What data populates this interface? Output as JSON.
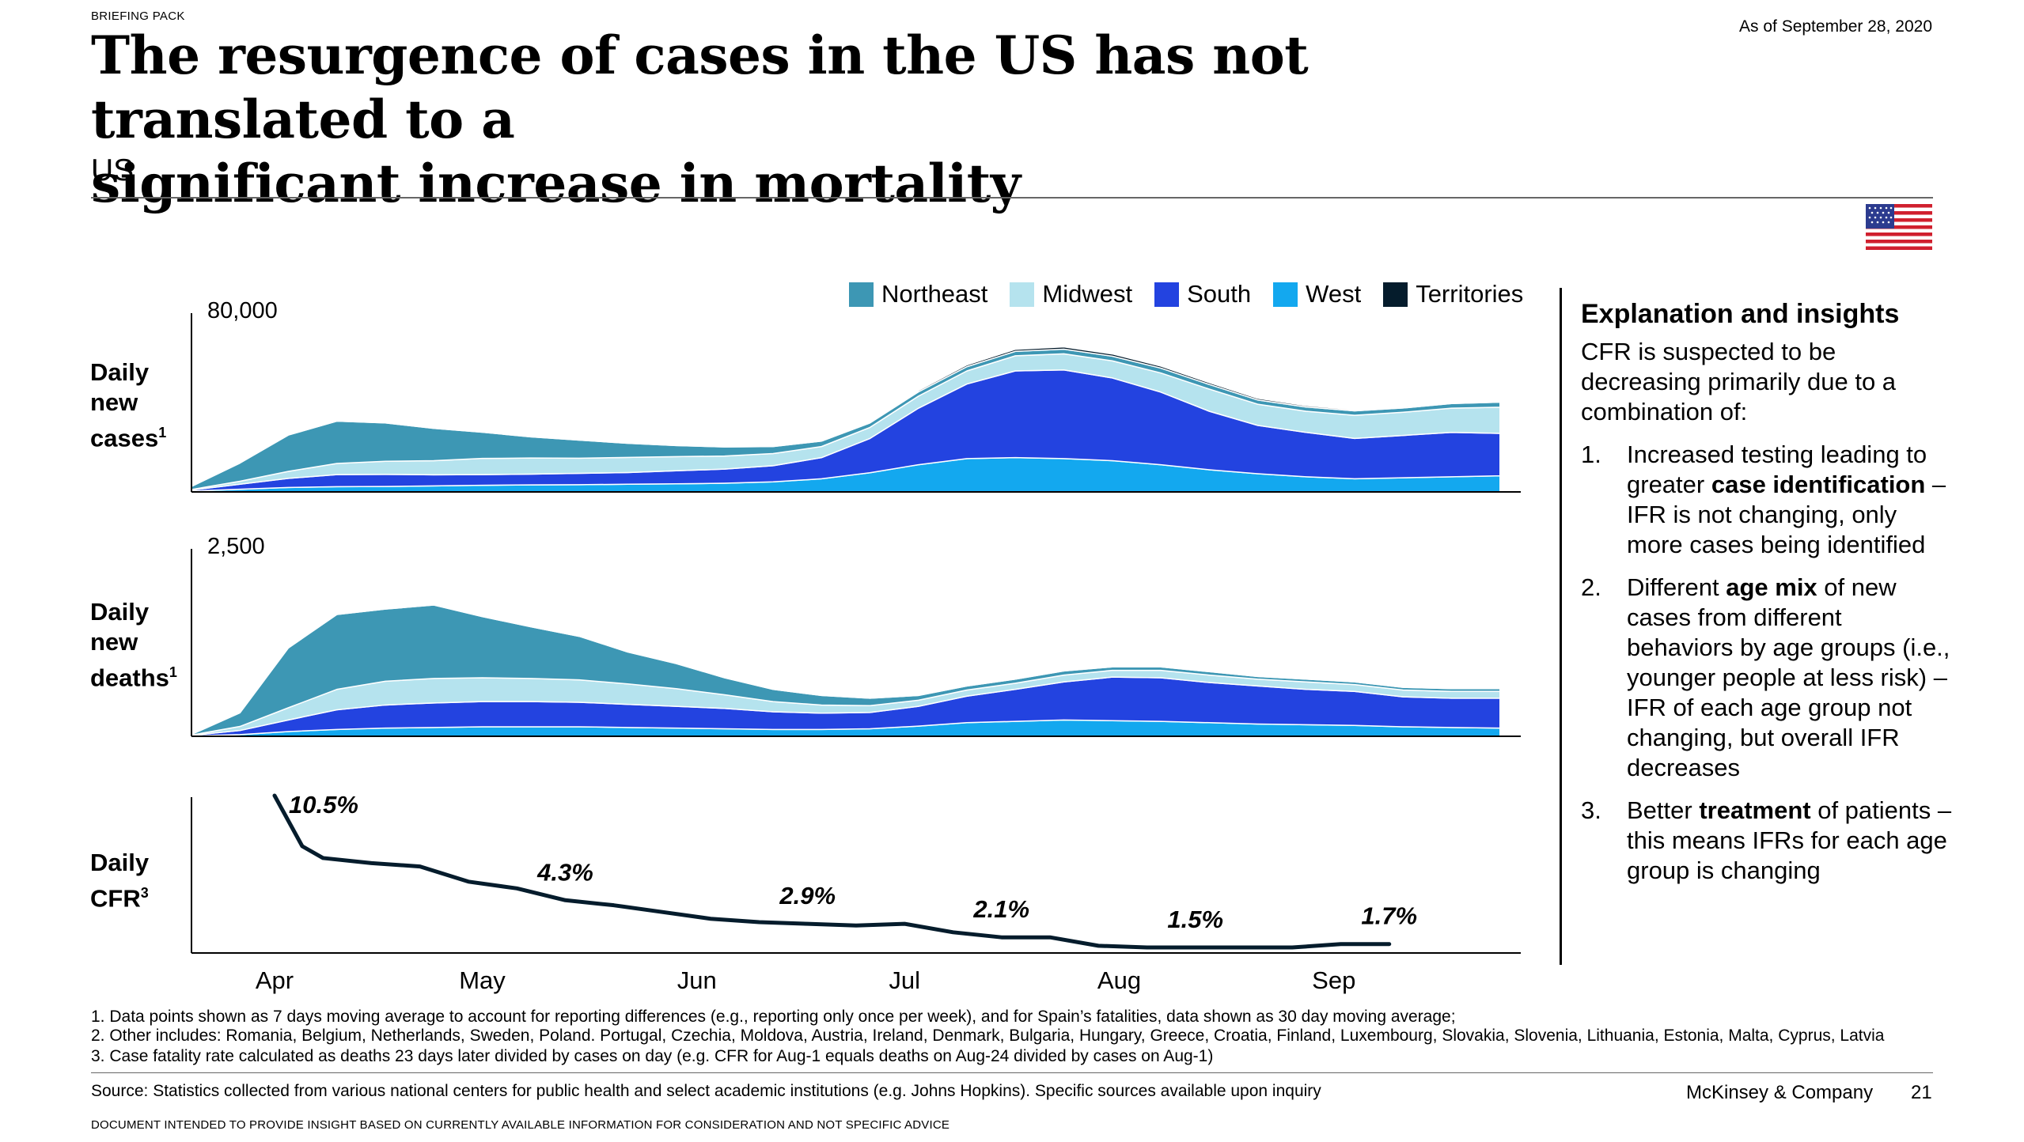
{
  "header": {
    "briefing": "BRIEFING PACK",
    "as_of": "As of September 28, 2020",
    "title_line1": "The resurgence of cases in the US has not translated to a",
    "title_line2": "significant increase in mortality",
    "subtitle": "US"
  },
  "legend": [
    {
      "label": "Northeast",
      "color": "#3d97b4"
    },
    {
      "label": "Midwest",
      "color": "#b5e3ee"
    },
    {
      "label": "South",
      "color": "#2343e0"
    },
    {
      "label": "West",
      "color": "#13a8ef"
    },
    {
      "label": "Territories",
      "color": "#051c2c"
    }
  ],
  "rows": {
    "cases_line1": "Daily",
    "cases_line2": "new",
    "cases_line3": "cases",
    "cases_sup": "1",
    "deaths_line1": "Daily",
    "deaths_line2": "new",
    "deaths_line3": "deaths",
    "deaths_sup": "1",
    "cfr_line1": "Daily",
    "cfr_line2": "CFR",
    "cfr_sup": "3"
  },
  "chart_data": [
    {
      "type": "area",
      "name": "cases",
      "ylim": [
        0,
        80000
      ],
      "ymax_label": "80,000",
      "x": [
        "Mar 20",
        "Mar 27",
        "Apr 3",
        "Apr 10",
        "Apr 17",
        "Apr 24",
        "May 1",
        "May 8",
        "May 15",
        "May 22",
        "May 29",
        "Jun 5",
        "Jun 12",
        "Jun 19",
        "Jun 26",
        "Jul 3",
        "Jul 10",
        "Jul 17",
        "Jul 24",
        "Jul 31",
        "Aug 7",
        "Aug 14",
        "Aug 21",
        "Aug 28",
        "Sep 4",
        "Sep 11",
        "Sep 18",
        "Sep 25"
      ],
      "series": [
        {
          "name": "West",
          "values": [
            400,
            1300,
            2200,
            2600,
            2700,
            3000,
            3300,
            3500,
            3600,
            3800,
            4000,
            4300,
            5000,
            6500,
            9500,
            13500,
            16500,
            17000,
            16500,
            15500,
            13500,
            11000,
            9000,
            7500,
            6500,
            7000,
            7500,
            8000
          ]
        },
        {
          "name": "South",
          "values": [
            500,
            2500,
            4500,
            6000,
            6000,
            5500,
            5300,
            5300,
            5600,
            5800,
            6500,
            7000,
            8000,
            10500,
            17000,
            28000,
            37000,
            43000,
            44000,
            41000,
            36000,
            29000,
            24000,
            22000,
            20000,
            21000,
            22000,
            21000
          ]
        },
        {
          "name": "Midwest",
          "values": [
            300,
            1500,
            3500,
            5500,
            6500,
            7000,
            8000,
            8000,
            7500,
            7500,
            7000,
            6500,
            6000,
            5500,
            5500,
            6000,
            6500,
            7500,
            8000,
            8500,
            9500,
            11000,
            10500,
            10500,
            11500,
            11500,
            12000,
            13000
          ]
        },
        {
          "name": "Northeast",
          "values": [
            1500,
            9000,
            18000,
            21000,
            19000,
            16000,
            13000,
            10500,
            9000,
            7000,
            5500,
            4500,
            3500,
            2700,
            2200,
            2100,
            2100,
            2200,
            2300,
            2300,
            2400,
            2300,
            2100,
            2100,
            2200,
            2100,
            2300,
            2500
          ]
        },
        {
          "name": "Territories",
          "values": [
            0,
            20,
            60,
            100,
            100,
            110,
            110,
            130,
            150,
            170,
            220,
            250,
            300,
            350,
            500,
            700,
            900,
            1000,
            1100,
            1100,
            1000,
            900,
            800,
            700,
            600,
            500,
            450,
            450
          ]
        }
      ]
    },
    {
      "type": "area",
      "name": "deaths",
      "ylim": [
        0,
        2500
      ],
      "ymax_label": "2,500",
      "x": [
        "Mar 20",
        "Mar 27",
        "Apr 3",
        "Apr 10",
        "Apr 17",
        "Apr 24",
        "May 1",
        "May 8",
        "May 15",
        "May 22",
        "May 29",
        "Jun 5",
        "Jun 12",
        "Jun 19",
        "Jun 26",
        "Jul 3",
        "Jul 10",
        "Jul 17",
        "Jul 24",
        "Jul 31",
        "Aug 7",
        "Aug 14",
        "Aug 21",
        "Aug 28",
        "Sep 4",
        "Sep 11",
        "Sep 18",
        "Sep 25"
      ],
      "series": [
        {
          "name": "West",
          "values": [
            5,
            25,
            70,
            100,
            120,
            130,
            140,
            140,
            140,
            130,
            120,
            110,
            100,
            100,
            110,
            150,
            200,
            220,
            240,
            230,
            220,
            200,
            180,
            170,
            160,
            140,
            130,
            120
          ]
        },
        {
          "name": "South",
          "values": [
            8,
            60,
            170,
            290,
            340,
            360,
            370,
            370,
            360,
            340,
            320,
            300,
            260,
            240,
            240,
            290,
            390,
            470,
            560,
            640,
            640,
            590,
            560,
            520,
            500,
            440,
            430,
            440
          ]
        },
        {
          "name": "Midwest",
          "values": [
            5,
            60,
            180,
            300,
            350,
            360,
            350,
            340,
            330,
            300,
            260,
            200,
            150,
            120,
            100,
            90,
            90,
            90,
            100,
            100,
            110,
            110,
            100,
            110,
            100,
            100,
            100,
            100
          ]
        },
        {
          "name": "Northeast",
          "values": [
            10,
            200,
            880,
            1100,
            1060,
            1080,
            900,
            760,
            640,
            470,
            370,
            250,
            180,
            140,
            110,
            70,
            60,
            60,
            60,
            50,
            50,
            50,
            40,
            40,
            40,
            40,
            40,
            40
          ]
        },
        {
          "name": "Territories",
          "values": [
            0,
            1,
            2,
            3,
            3,
            3,
            3,
            3,
            3,
            3,
            3,
            3,
            3,
            3,
            3,
            3,
            4,
            5,
            6,
            6,
            6,
            6,
            5,
            5,
            5,
            4,
            4,
            4
          ]
        }
      ]
    },
    {
      "type": "line",
      "name": "cfr",
      "x": [
        "Apr 1",
        "Apr 5",
        "Apr 8",
        "Apr 15",
        "Apr 22",
        "Apr 29",
        "May 6",
        "May 13",
        "May 20",
        "May 27",
        "Jun 3",
        "Jun 10",
        "Jun 17",
        "Jun 24",
        "Jul 1",
        "Jul 8",
        "Jul 15",
        "Jul 22",
        "Jul 29",
        "Aug 5",
        "Aug 12",
        "Aug 19",
        "Aug 26",
        "Sep 2",
        "Sep 9"
      ],
      "series": [
        {
          "name": "CFR",
          "values": [
            10.5,
            7.5,
            6.8,
            6.5,
            6.3,
            5.4,
            5.0,
            4.3,
            4.0,
            3.6,
            3.2,
            3.0,
            2.9,
            2.8,
            2.9,
            2.4,
            2.1,
            2.1,
            1.6,
            1.5,
            1.5,
            1.5,
            1.5,
            1.7,
            1.7
          ]
        }
      ],
      "annotations": [
        {
          "x": "Apr 1",
          "label": "10.5%"
        },
        {
          "x": "May 13",
          "label": "4.3%"
        },
        {
          "x": "Jun 17",
          "label": "2.9%"
        },
        {
          "x": "Jul 15",
          "label": "2.1%"
        },
        {
          "x": "Aug 12",
          "label": "1.5%"
        },
        {
          "x": "Sep 9",
          "label": "1.7%"
        }
      ]
    }
  ],
  "months": [
    "Apr",
    "May",
    "Jun",
    "Jul",
    "Aug",
    "Sep"
  ],
  "insights": {
    "title": "Explanation and insights",
    "intro": "CFR is suspected to be decreasing primarily due to a combination of:",
    "items": [
      {
        "num": "1.",
        "pre": "Increased testing leading to greater ",
        "bold": "case identification",
        "post": " – IFR is not changing, only more cases being identified"
      },
      {
        "num": "2.",
        "pre": "Different ",
        "bold": "age mix",
        "post": " of new cases from different behaviors by age groups (i.e., younger people at less risk) – IFR of each age group not changing, but overall IFR decreases"
      },
      {
        "num": "3.",
        "pre": "Better ",
        "bold": "treatment",
        "post": " of patients – this means IFRs for each age group is changing"
      }
    ]
  },
  "footnotes": [
    "1. Data points shown as 7 days moving average to account for reporting differences (e.g., reporting only once per week), and for Spain’s fatalities, data shown as 30 day moving average;",
    "2. Other includes: Romania, Belgium, Netherlands, Sweden, Poland. Portugal, Czechia, Moldova, Austria, Ireland, Denmark, Bulgaria, Hungary, Greece, Croatia, Finland, Luxembourg, Slovakia, Slovenia, Lithuania, Estonia, Malta, Cyprus, Latvia",
    "3. Case fatality rate calculated as deaths 23 days later divided by  cases on day (e.g. CFR for Aug-1 equals deaths on Aug-24 divided by cases on Aug-1)"
  ],
  "footer": {
    "source": "Source: Statistics collected from various national centers for public health and select academic institutions (e.g. Johns Hopkins). Specific sources available upon inquiry",
    "brand": "McKinsey & Company",
    "page": "21",
    "disclaimer": "DOCUMENT INTENDED TO PROVIDE INSIGHT BASED ON CURRENTLY AVAILABLE INFORMATION FOR CONSIDERATION AND NOT SPECIFIC ADVICE"
  },
  "colors": {
    "cfr_line": "#051c2c",
    "axis": "#000000"
  }
}
